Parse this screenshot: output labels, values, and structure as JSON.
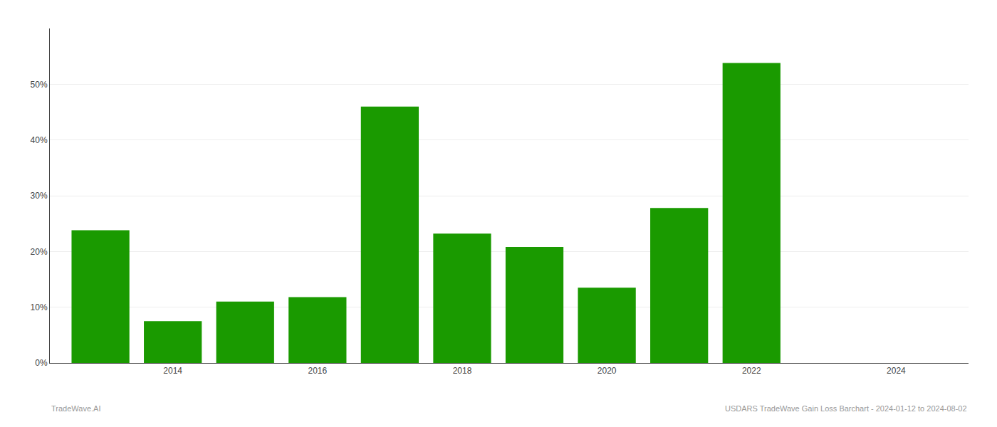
{
  "chart_data": {
    "type": "bar",
    "x": [
      2013,
      2014,
      2015,
      2016,
      2017,
      2018,
      2019,
      2020,
      2021,
      2022,
      2023
    ],
    "values": [
      0.238,
      0.075,
      0.11,
      0.118,
      0.46,
      0.232,
      0.208,
      0.135,
      0.278,
      0.538,
      0.0
    ],
    "color": "#1a9a00",
    "xlim": [
      2012.3,
      2025.0
    ],
    "xticks": [
      2014,
      2016,
      2018,
      2020,
      2022,
      2024
    ],
    "ylim": [
      0,
      0.6
    ],
    "yticks": [
      {
        "value": 0.0,
        "label": "0%"
      },
      {
        "value": 0.1,
        "label": "10%"
      },
      {
        "value": 0.2,
        "label": "20%"
      },
      {
        "value": 0.3,
        "label": "30%"
      },
      {
        "value": 0.4,
        "label": "40%"
      },
      {
        "value": 0.5,
        "label": "50%"
      }
    ],
    "grid": "y",
    "annotations": [
      "TradeWave.AI",
      "USDARS TradeWave Gain Loss Barchart - 2024-01-12 to 2024-08-02"
    ]
  }
}
